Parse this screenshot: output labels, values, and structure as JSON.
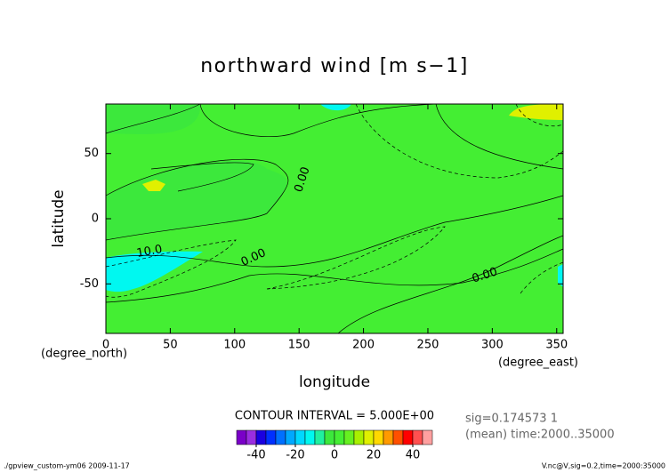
{
  "chart_data": {
    "type": "contour",
    "title": "northward wind [m s−1]",
    "xlabel": "longitude",
    "ylabel": "latitude",
    "x_unit_left": "(degree_north)",
    "x_unit_right": "(degree_east)",
    "xlim": [
      0,
      355
    ],
    "ylim": [
      -88,
      88
    ],
    "xticks": [
      0,
      50,
      100,
      150,
      200,
      250,
      300,
      350
    ],
    "yticks": [
      -50,
      0,
      50
    ],
    "contour_labels": [
      "10.0",
      "0.00",
      "0.00",
      "0.00"
    ],
    "contour_interval": "CONTOUR INTERVAL = 5.000E+00",
    "info": [
      "sig=0.174573 1",
      "(mean) time:2000..35000"
    ],
    "footer_left": "./gpview_custom-ym06  2009-11-17",
    "footer_right": "V.nc@V,sig=0.2,time=2000:35000",
    "colorbar": {
      "levels": [
        -50,
        -45,
        -40,
        -35,
        -30,
        -25,
        -20,
        -15,
        -10,
        -5,
        0,
        5,
        10,
        15,
        20,
        25,
        30,
        35,
        40,
        45,
        50
      ],
      "colors": [
        "#7a00c8",
        "#9a2ee0",
        "#1a00e0",
        "#0030ff",
        "#0070ff",
        "#00a8ff",
        "#00d8ff",
        "#00f8f0",
        "#20f0a0",
        "#3ce83c",
        "#44ee33",
        "#66f020",
        "#a8f000",
        "#e0f000",
        "#ffd800",
        "#ff9a00",
        "#ff5000",
        "#ff0000",
        "#ff5050",
        "#ffa0a0"
      ],
      "ticks": [
        -40,
        -20,
        0,
        20,
        40
      ]
    }
  }
}
